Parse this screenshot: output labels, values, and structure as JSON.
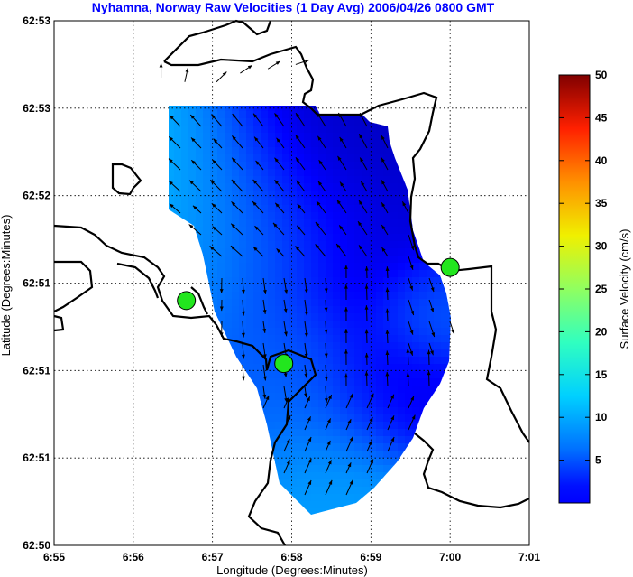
{
  "chart_data": {
    "type": "vector-field",
    "title": "Nyhamna, Norway Raw Velocities (1 Day Avg) 2006/04/26 0800 GMT",
    "xlabel": "Longitude (Degrees:Minutes)",
    "ylabel": "Latitude (Degrees:Minutes)",
    "x_ticks": [
      "6:55",
      "6:56",
      "6:57",
      "6:58",
      "6:59",
      "7:00",
      "7:01"
    ],
    "y_ticks": [
      "62:50",
      "62:51",
      "62:51",
      "62:51",
      "62:52",
      "62:53",
      "62:53"
    ],
    "grid": true,
    "colorbar": {
      "label": "Surface Velocity (cm/s)",
      "range": [
        0,
        50
      ],
      "ticks": [
        5,
        10,
        15,
        20,
        25,
        30,
        35,
        40,
        45,
        50
      ],
      "colormap": "jet"
    },
    "speed_field_range_cm_s": [
      2,
      16
    ],
    "sites": [
      {
        "lon_min": 56.67,
        "lat_idx": 2.8
      },
      {
        "lon_min": 57.9,
        "lat_idx": 2.08
      },
      {
        "lon_min": 60.0,
        "lat_idx": 3.18
      }
    ],
    "vectors_note_units": "cm/s, components east/north",
    "vectors": [
      {
        "x": 56.35,
        "y": 5.35,
        "u": 0,
        "v": 1
      },
      {
        "x": 56.65,
        "y": 5.3,
        "u": 0.2,
        "v": 0.9
      },
      {
        "x": 57.05,
        "y": 5.3,
        "u": 0.6,
        "v": 0.6
      },
      {
        "x": 57.35,
        "y": 5.4,
        "u": 0.9,
        "v": 0.6
      },
      {
        "x": 57.7,
        "y": 5.45,
        "u": 0.8,
        "v": 0.5
      },
      {
        "x": 58.05,
        "y": 5.5,
        "u": 0.9,
        "v": 0.3
      }
    ]
  },
  "colors": {
    "title": "#0000ff",
    "site": "#22e61e",
    "axes": "#000000"
  }
}
